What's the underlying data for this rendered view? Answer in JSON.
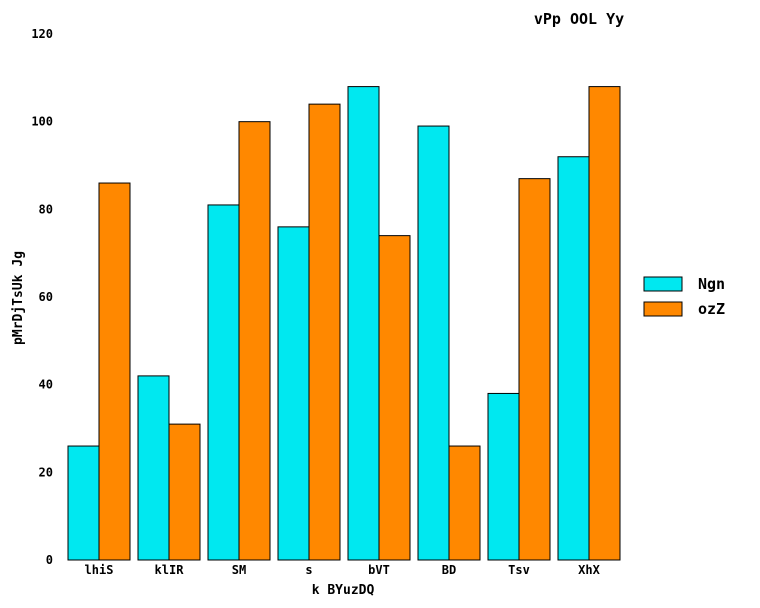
{
  "chart_data": {
    "type": "bar",
    "title": "vPp OOL Yy",
    "xlabel": "k BYuzDQ",
    "ylabel": "pMrDjTsUk Jg",
    "categories": [
      "lhiS",
      "klIR",
      "SM",
      "s",
      "bVT",
      "BD",
      "Tsv",
      "XhX"
    ],
    "series": [
      {
        "name": "Ngn",
        "color": "#00e8f0",
        "values": [
          26,
          42,
          81,
          76,
          108,
          99,
          38,
          92
        ]
      },
      {
        "name": "ozZ",
        "color": "#ff8800",
        "values": [
          86,
          31,
          100,
          104,
          74,
          26,
          87,
          108
        ]
      }
    ],
    "ylim": [
      0,
      120
    ],
    "yticks": [
      0,
      20,
      40,
      60,
      80,
      100,
      120
    ],
    "grid": false,
    "legend_position": "right"
  }
}
